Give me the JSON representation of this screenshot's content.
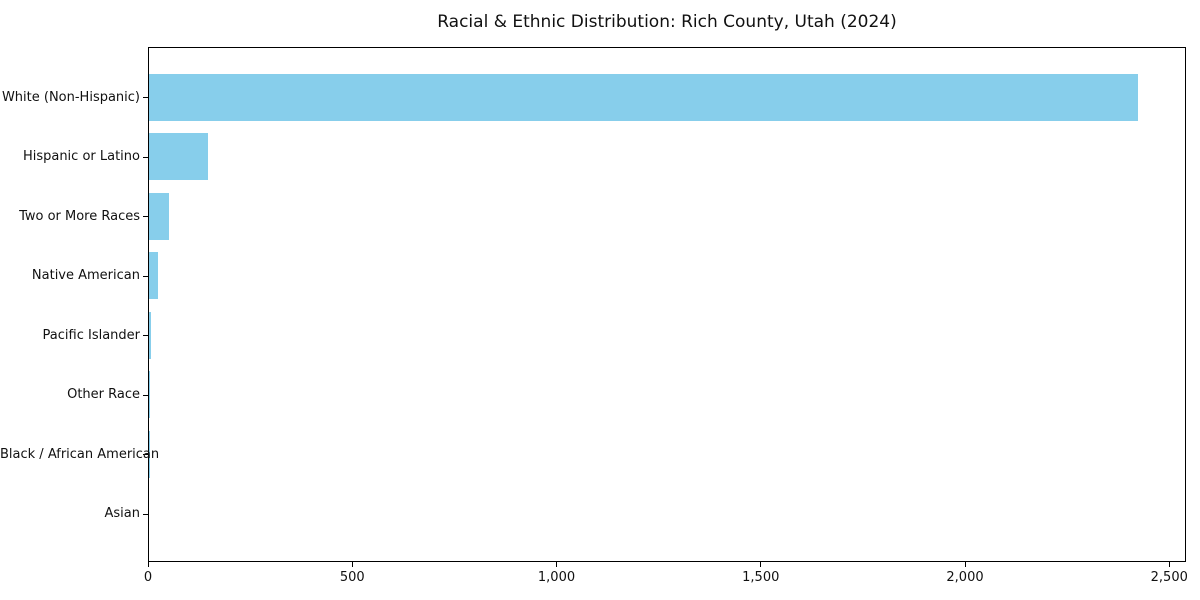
{
  "chart_data": {
    "type": "bar",
    "orientation": "horizontal",
    "title": "Racial & Ethnic Distribution: Rich County, Utah (2024)",
    "xlabel": "",
    "ylabel": "",
    "categories": [
      "White (Non-Hispanic)",
      "Hispanic or Latino",
      "Two or More Races",
      "Native American",
      "Pacific Islander",
      "Other Race",
      "Black / African American",
      "Asian"
    ],
    "values": [
      2420,
      145,
      50,
      23,
      5,
      2,
      1,
      0
    ],
    "xlim": [
      0,
      2541
    ],
    "xticks": [
      0,
      500,
      1000,
      1500,
      2000,
      2500
    ],
    "xtick_labels": [
      "0",
      "500",
      "1,000",
      "1,500",
      "2,000",
      "2,500"
    ],
    "bar_color": "#87CEEB",
    "frame_color": "#000000",
    "grid": false,
    "legend": null
  }
}
